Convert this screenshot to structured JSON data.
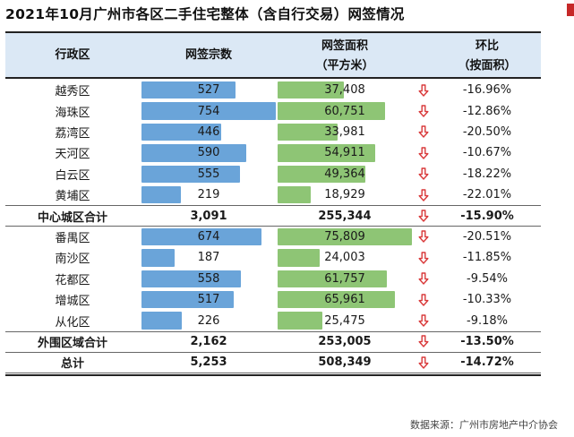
{
  "title": "2021年10月广州市各区二手住宅整体（含自行交易）网签情况",
  "headers": {
    "district": "行政区",
    "deals": "网签宗数",
    "area_line1": "网签面积",
    "area_line2": "（平方米）",
    "change_line1": "环比",
    "change_line2": "（按面积）"
  },
  "source": "数据来源：广州市房地产中介协会",
  "colors": {
    "deals_bar": "#6aa4d9",
    "area_bar": "#8ec575",
    "down_arrow": "#d9393a",
    "header_band": "#dbe8f5"
  },
  "chart_data": {
    "type": "table",
    "columns": [
      "行政区",
      "网签宗数",
      "网签面积（平方米）",
      "环比（按面积）"
    ],
    "rows": [
      {
        "district": "越秀区",
        "deals": 527,
        "deals_label": "527",
        "area": 37408,
        "area_label": "37,408",
        "change": "-16.96%",
        "direction": "down",
        "subtotal": false
      },
      {
        "district": "海珠区",
        "deals": 754,
        "deals_label": "754",
        "area": 60751,
        "area_label": "60,751",
        "change": "-12.86%",
        "direction": "down",
        "subtotal": false
      },
      {
        "district": "荔湾区",
        "deals": 446,
        "deals_label": "446",
        "area": 33981,
        "area_label": "33,981",
        "change": "-20.50%",
        "direction": "down",
        "subtotal": false
      },
      {
        "district": "天河区",
        "deals": 590,
        "deals_label": "590",
        "area": 54911,
        "area_label": "54,911",
        "change": "-10.67%",
        "direction": "down",
        "subtotal": false
      },
      {
        "district": "白云区",
        "deals": 555,
        "deals_label": "555",
        "area": 49364,
        "area_label": "49,364",
        "change": "-18.22%",
        "direction": "down",
        "subtotal": false
      },
      {
        "district": "黄埔区",
        "deals": 219,
        "deals_label": "219",
        "area": 18929,
        "area_label": "18,929",
        "change": "-22.01%",
        "direction": "down",
        "subtotal": false
      },
      {
        "district": "中心城区合计",
        "deals": 3091,
        "deals_label": "3,091",
        "area": 255344,
        "area_label": "255,344",
        "change": "-15.90%",
        "direction": "down",
        "subtotal": true
      },
      {
        "district": "番禺区",
        "deals": 674,
        "deals_label": "674",
        "area": 75809,
        "area_label": "75,809",
        "change": "-20.51%",
        "direction": "down",
        "subtotal": false
      },
      {
        "district": "南沙区",
        "deals": 187,
        "deals_label": "187",
        "area": 24003,
        "area_label": "24,003",
        "change": "-11.85%",
        "direction": "down",
        "subtotal": false
      },
      {
        "district": "花都区",
        "deals": 558,
        "deals_label": "558",
        "area": 61757,
        "area_label": "61,757",
        "change": "-9.54%",
        "direction": "down",
        "subtotal": false
      },
      {
        "district": "增城区",
        "deals": 517,
        "deals_label": "517",
        "area": 65961,
        "area_label": "65,961",
        "change": "-10.33%",
        "direction": "down",
        "subtotal": false
      },
      {
        "district": "从化区",
        "deals": 226,
        "deals_label": "226",
        "area": 25475,
        "area_label": "25,475",
        "change": "-9.18%",
        "direction": "down",
        "subtotal": false
      },
      {
        "district": "外围区域合计",
        "deals": 2162,
        "deals_label": "2,162",
        "area": 253005,
        "area_label": "253,005",
        "change": "-13.50%",
        "direction": "down",
        "subtotal": true
      },
      {
        "district": "总计",
        "deals": 5253,
        "deals_label": "5,253",
        "area": 508349,
        "area_label": "508,349",
        "change": "-14.72%",
        "direction": "down",
        "subtotal": true
      }
    ]
  }
}
